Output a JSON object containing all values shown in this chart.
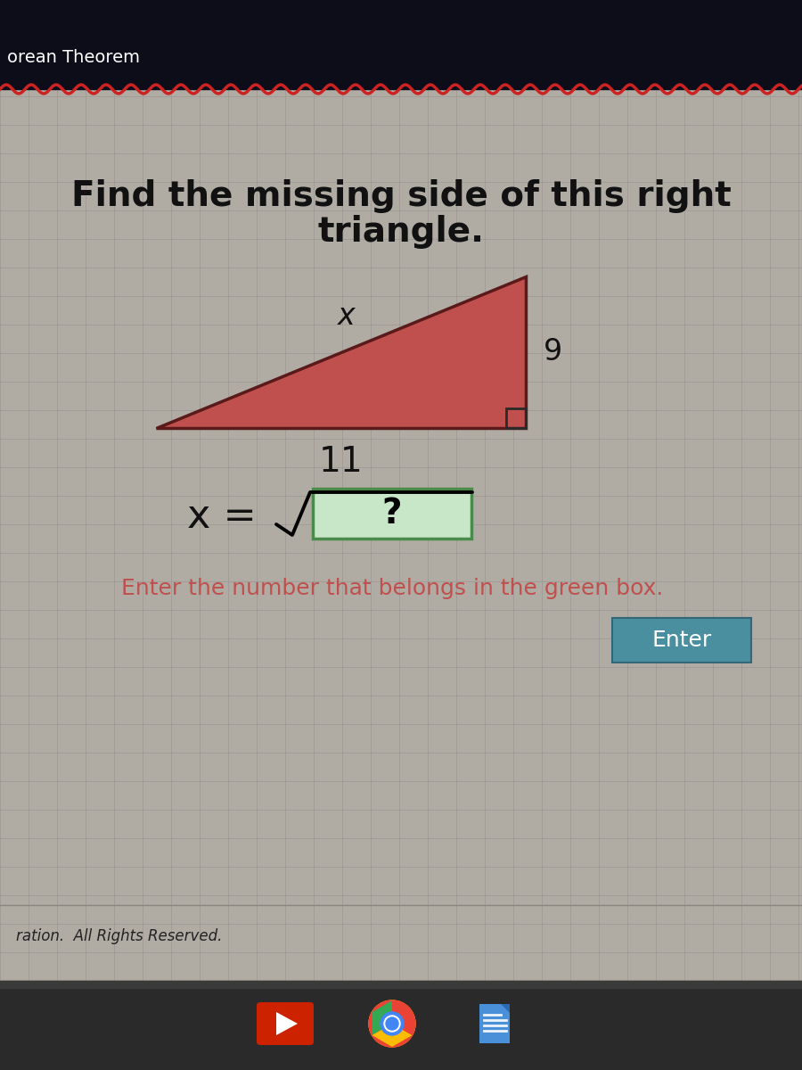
{
  "bg_outer": "#1a1a2e",
  "top_bar_color": "#0d0d0d",
  "content_bg": "#b8b4a8",
  "grid_line_color": "#a0a09a",
  "title_text": "orean Theorem",
  "question_line1": "Find the missing side of this right",
  "question_line2": "triangle.",
  "triangle_fill": "#c0504d",
  "triangle_edge": "#5a1a1a",
  "right_angle_color": "#2a2a2a",
  "label_x": "x",
  "label_9": "9",
  "label_11": "11",
  "enter_hint": "Enter the number that belongs in the green box.",
  "enter_hint_color": "#c0504d",
  "enter_btn_text": "Enter",
  "enter_btn_color": "#4a8fa0",
  "enter_btn_text_color": "#ffffff",
  "copyright_text": "ration.  All Rights Reserved.",
  "taskbar_color": "#2a2a2a",
  "taskbar_bg": "#3a3a3a",
  "sqrt_box_fill": "#c8e6c8",
  "sqrt_box_edge": "#4a8a4a",
  "wavy_color": "#cc2222",
  "text_color": "#111111",
  "formula_color": "#111111"
}
